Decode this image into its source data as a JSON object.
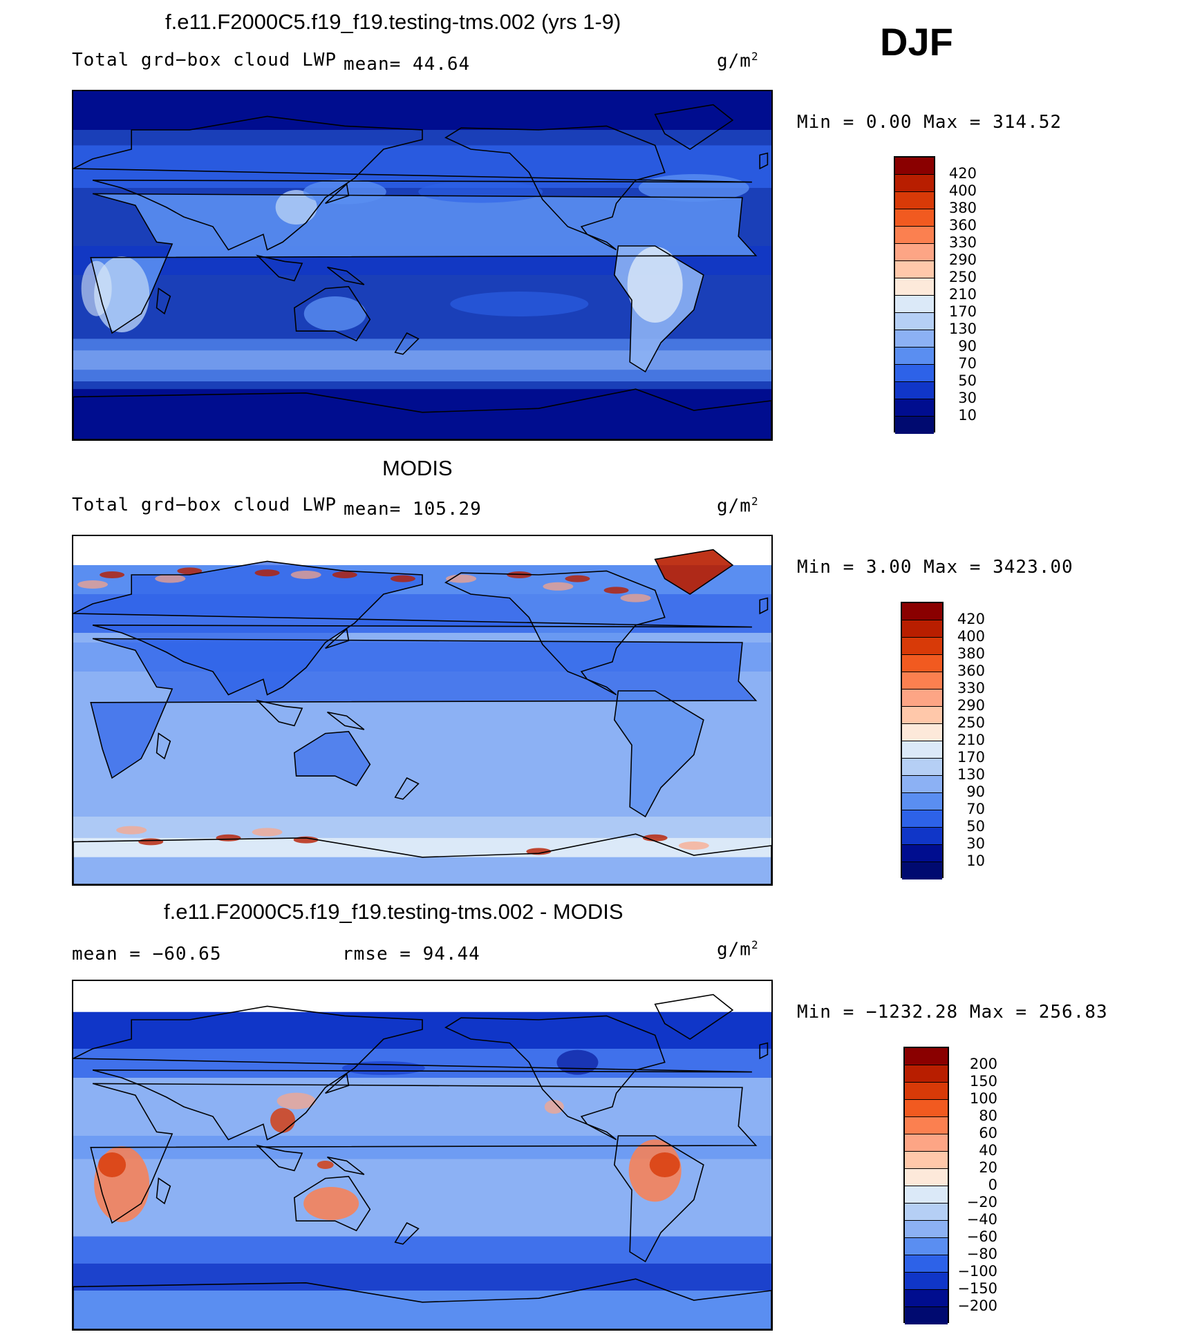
{
  "season": "DJF",
  "panels": [
    {
      "id": "model",
      "title": "f.e11.F2000C5.f19_f19.testing-tms.002 (yrs 1-9)",
      "left_label": "Total grd−box cloud LWP",
      "mid_label": "mean=   44.64",
      "units_base": "g/m",
      "units_exp": "2",
      "minmax": "Min  =     0.00 Max  = 314.52",
      "legend_levels": [
        "420",
        "400",
        "380",
        "360",
        "330",
        "290",
        "250",
        "210",
        "170",
        "130",
        "90",
        "70",
        "50",
        "30",
        "10"
      ],
      "legend_colors": [
        "#8a0000",
        "#b81e00",
        "#d83a08",
        "#f15a20",
        "#fb8050",
        "#fda585",
        "#ffc8aa",
        "#fde9da",
        "#dbe9f8",
        "#b5cff5",
        "#8cb1f4",
        "#5a8ef1",
        "#2d62e8",
        "#1036c8",
        "#000d8f",
        "#000a70"
      ],
      "map_background": "#1a3fb8"
    },
    {
      "id": "obs",
      "title": "MODIS",
      "left_label": "Total grd−box cloud LWP",
      "mid_label": "mean=  105.29",
      "units_base": "g/m",
      "units_exp": "2",
      "minmax": "Min  =     3.00 Max  = 3423.00",
      "legend_levels": [
        "420",
        "400",
        "380",
        "360",
        "330",
        "290",
        "250",
        "210",
        "170",
        "130",
        "90",
        "70",
        "50",
        "30",
        "10"
      ],
      "legend_colors": [
        "#8a0000",
        "#b81e00",
        "#d83a08",
        "#f15a20",
        "#fb8050",
        "#fda585",
        "#ffc8aa",
        "#fde9da",
        "#dbe9f8",
        "#b5cff5",
        "#8cb1f4",
        "#5a8ef1",
        "#2d62e8",
        "#1036c8",
        "#000d8f",
        "#000a70"
      ],
      "map_background": "#8cb1f4"
    },
    {
      "id": "diff",
      "title": "f.e11.F2000C5.f19_f19.testing-tms.002 - MODIS",
      "left_label": "mean  =  −60.65",
      "mid_label": "rmse  =   94.44",
      "units_base": "g/m",
      "units_exp": "2",
      "minmax": "Min  =  −1232.28 Max  =  256.83",
      "legend_levels": [
        "200",
        "150",
        "100",
        "80",
        "60",
        "40",
        "20",
        "0",
        "−20",
        "−40",
        "−60",
        "−80",
        "−100",
        "−150",
        "−200"
      ],
      "legend_colors": [
        "#8a0000",
        "#b81e00",
        "#d83a08",
        "#f15a20",
        "#fb8050",
        "#fda585",
        "#ffc8aa",
        "#fde9da",
        "#dbe9f8",
        "#b5cff5",
        "#8cb1f4",
        "#5a8ef1",
        "#2d62e8",
        "#1036c8",
        "#000d8f",
        "#000a70"
      ],
      "map_background": "#8cb1f4"
    }
  ],
  "chart_data": {
    "type": "heatmap",
    "season": "DJF",
    "units": "g/m2",
    "panels": [
      {
        "title": "f.e11.F2000C5.f19_f19.testing-tms.002 (yrs 1-9)",
        "variable": "Total grd-box cloud LWP",
        "mean": 44.64,
        "min": 0.0,
        "max": 314.52,
        "contour_levels": [
          10,
          30,
          50,
          70,
          90,
          130,
          170,
          210,
          250,
          290,
          330,
          360,
          380,
          400,
          420
        ]
      },
      {
        "title": "MODIS",
        "variable": "Total grd-box cloud LWP",
        "mean": 105.29,
        "min": 3.0,
        "max": 3423.0,
        "contour_levels": [
          10,
          30,
          50,
          70,
          90,
          130,
          170,
          210,
          250,
          290,
          330,
          360,
          380,
          400,
          420
        ]
      },
      {
        "title": "f.e11.F2000C5.f19_f19.testing-tms.002 - MODIS",
        "mean": -60.65,
        "rmse": 94.44,
        "min": -1232.28,
        "max": 256.83,
        "contour_levels": [
          -200,
          -150,
          -100,
          -80,
          -60,
          -40,
          -20,
          0,
          20,
          40,
          60,
          80,
          100,
          150,
          200
        ]
      }
    ]
  }
}
